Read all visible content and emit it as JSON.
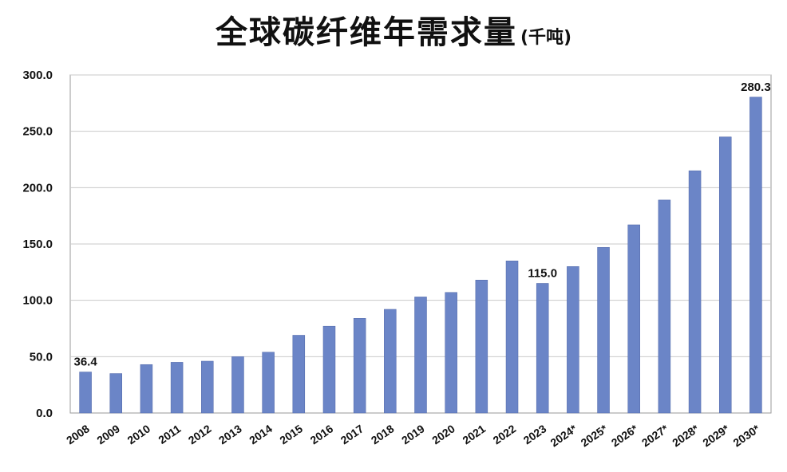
{
  "chart_data": {
    "type": "bar",
    "title": "全球碳纤维年需求量",
    "subtitle": "(千吨)",
    "categories": [
      "2008",
      "2009",
      "2010",
      "2011",
      "2012",
      "2013",
      "2014",
      "2015",
      "2016",
      "2017",
      "2018",
      "2019",
      "2020",
      "2021",
      "2022",
      "2023",
      "2024*",
      "2025*",
      "2026*",
      "2027*",
      "2028*",
      "2029*",
      "2030*"
    ],
    "values": [
      36.4,
      35,
      43,
      45,
      46,
      50,
      54,
      69,
      77,
      84,
      92,
      103,
      107,
      118,
      135,
      115.0,
      130,
      147,
      167,
      189,
      215,
      245,
      280.3
    ],
    "data_labels": [
      {
        "index": 0,
        "text": "36.4"
      },
      {
        "index": 15,
        "text": "115.0"
      },
      {
        "index": 22,
        "text": "280.3"
      }
    ],
    "yticks": [
      "0.0",
      "50.0",
      "100.0",
      "150.0",
      "200.0",
      "250.0",
      "300.0"
    ],
    "ylim": [
      0,
      300
    ],
    "grid": true,
    "colors": {
      "bar": "#6b85c7",
      "bar_edge": "#4f66a8",
      "grid": "#c9c9c9",
      "axis": "#9a9a9a"
    }
  }
}
